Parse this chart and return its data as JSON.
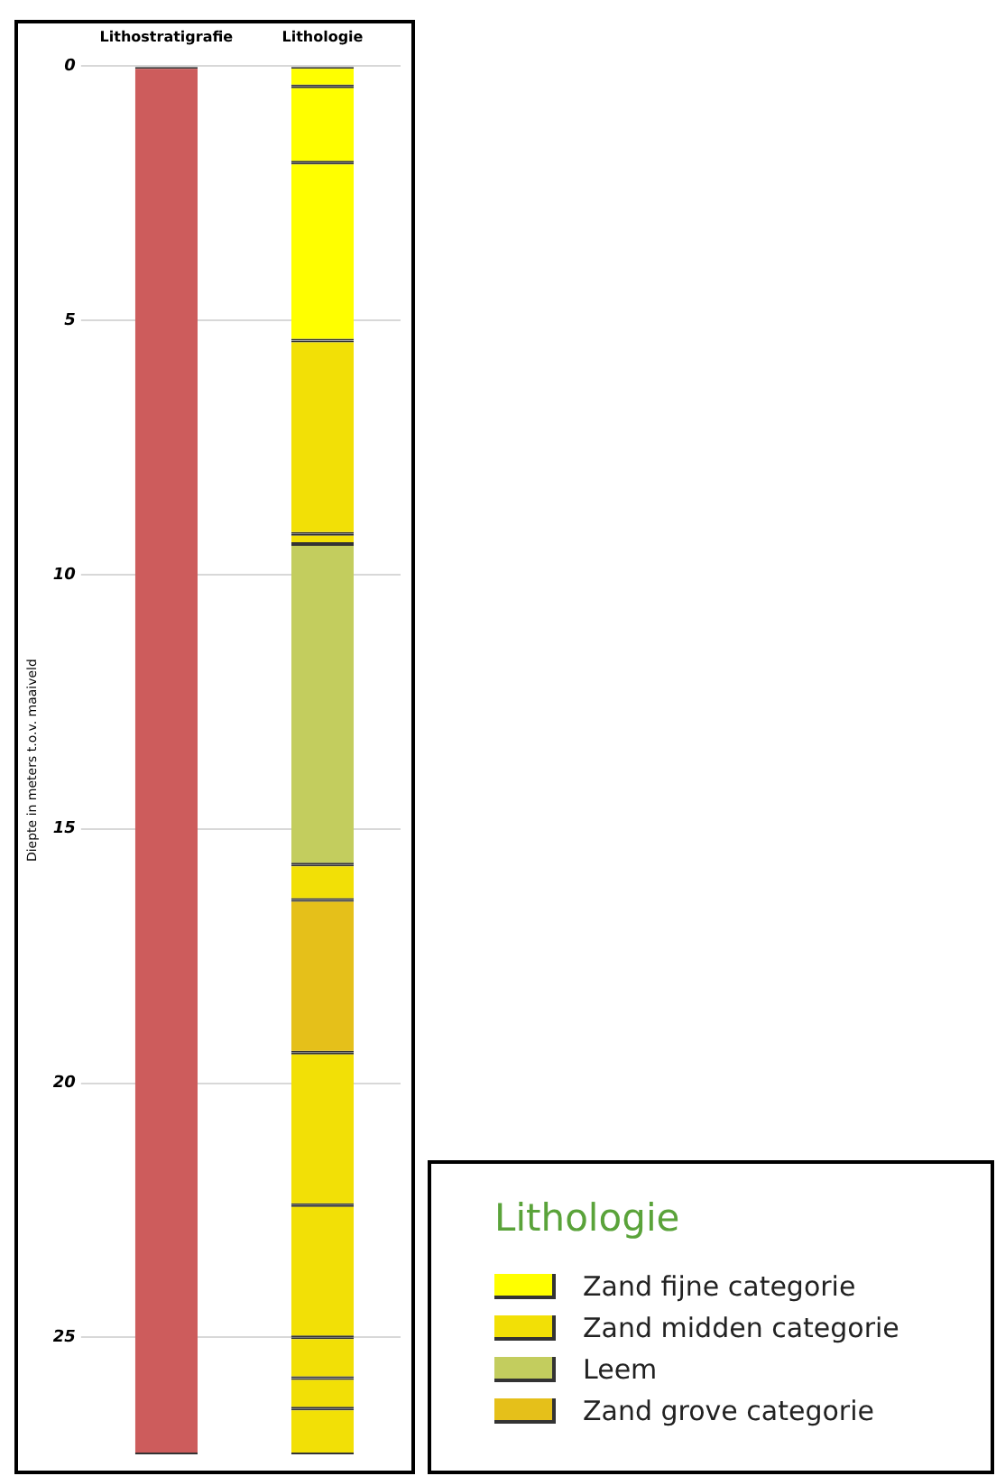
{
  "chart_data": {
    "type": "bar",
    "stacked": true,
    "ylabel": "Diepte in meters t.o.v. maaiveld",
    "legend_title": "Lithologie",
    "legend": "bottom right",
    "grid": "y",
    "categories": [
      "Lithostratigrafie",
      "Lithologie"
    ],
    "ylim": [
      27.3,
      0
    ],
    "yticks": [
      0,
      5,
      10,
      15,
      20,
      25
    ],
    "series": [
      {
        "color": "#cd5c5c",
        "values": [
          27.3,
          null
        ]
      },
      {
        "name": "Zand fijne categorie",
        "color": "#ffff00",
        "values": [
          null,
          0.4
        ]
      },
      {
        "color": "#ffff00",
        "values": [
          null,
          1.5
        ]
      },
      {
        "color": "#ffff00",
        "values": [
          null,
          3.5
        ]
      },
      {
        "name": "Zand midden categorie",
        "color": "#f2e006",
        "values": [
          null,
          3.8
        ]
      },
      {
        "color": "#f2e006",
        "values": [
          null,
          0.2
        ]
      },
      {
        "name": "Leem",
        "color": "#c3cd5e",
        "values": [
          null,
          6.3
        ]
      },
      {
        "color": "#f2e006",
        "values": [
          null,
          0.7
        ]
      },
      {
        "name": "Zand grove categorie",
        "color": "#e5c01a",
        "values": [
          null,
          3.0
        ]
      },
      {
        "color": "#f2e006",
        "values": [
          null,
          3.0
        ]
      },
      {
        "color": "#f2e006",
        "values": [
          null,
          2.6
        ]
      },
      {
        "color": "#f2e006",
        "values": [
          null,
          0.8
        ]
      },
      {
        "color": "#f2e006",
        "values": [
          null,
          0.6
        ]
      },
      {
        "color": "#f2e006",
        "values": [
          null,
          0.9
        ]
      }
    ]
  }
}
